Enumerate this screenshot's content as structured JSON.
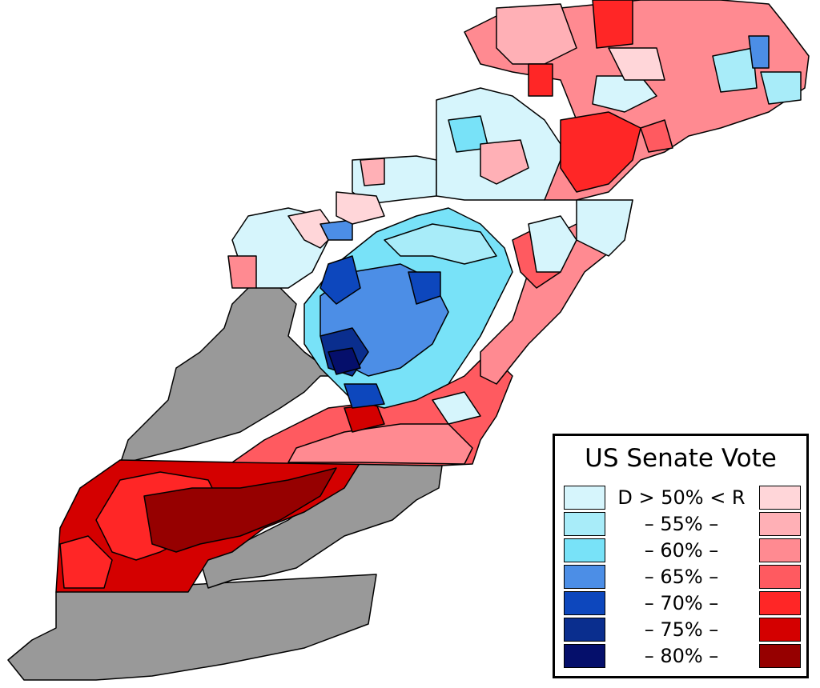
{
  "legend": {
    "title": "US Senate Vote",
    "rows": [
      {
        "label": "D > 50% < R",
        "d_color": "#d6f5fc",
        "r_color": "#ffd6d9"
      },
      {
        "label": "–   55%   –",
        "d_color": "#a8ecf9",
        "r_color": "#ffb0b6"
      },
      {
        "label": "–   60%   –",
        "d_color": "#78e2f8",
        "r_color": "#ff8a91"
      },
      {
        "label": "–   65%   –",
        "d_color": "#4c8ee6",
        "r_color": "#ff5a60"
      },
      {
        "label": "–   70%   –",
        "d_color": "#0d47bd",
        "r_color": "#ff2626"
      },
      {
        "label": "–   75%   –",
        "d_color": "#0a2e8e",
        "r_color": "#d40000"
      },
      {
        "label": "–   80%   –",
        "d_color": "#050f6b",
        "r_color": "#960000"
      }
    ]
  },
  "map_colors": {
    "no_election": "#999999",
    "border": "#000000"
  }
}
